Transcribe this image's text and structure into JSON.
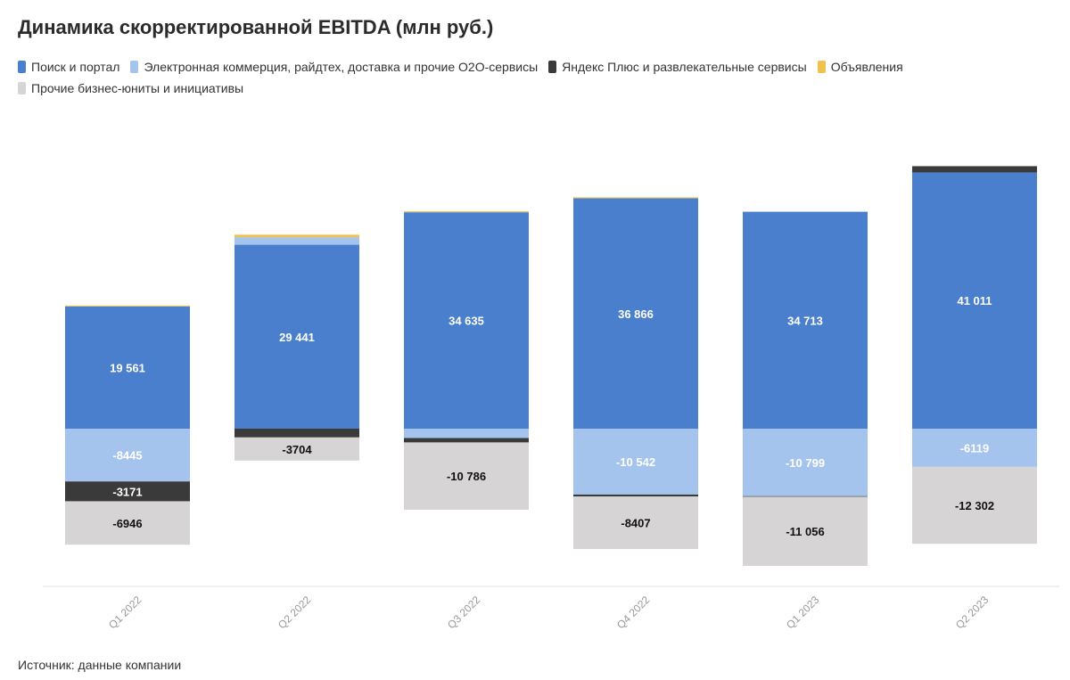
{
  "title": "Динамика скорректированной EBITDA (млн руб.)",
  "source": "Источник: данные компании",
  "colors": {
    "search": "#4a7fcd",
    "ecom": "#a4c4ed",
    "plus": "#3a3a3a",
    "ads": "#f0c24c",
    "other": "#d6d4d4"
  },
  "chart_data": {
    "type": "bar",
    "stacked": true,
    "categories": [
      "Q1 2022",
      "Q2 2022",
      "Q3 2022",
      "Q4 2022",
      "Q1 2023",
      "Q2 2023"
    ],
    "ylim": [
      -20000,
      55000
    ],
    "grid": false,
    "legend_position": "top-left",
    "series": [
      {
        "key": "search",
        "name": "Поиск и портал",
        "values": [
          19561,
          29441,
          34635,
          36866,
          34713,
          41011
        ],
        "labels": [
          "19 561",
          "29 441",
          "34 635",
          "36 866",
          "34 713",
          "41 011"
        ]
      },
      {
        "key": "ecom",
        "name": "Электронная коммерция, райдтех, доставка и прочие O2O-сервисы",
        "values": [
          -8445,
          1200,
          -1500,
          -10542,
          -10799,
          -6119
        ],
        "labels": [
          "-8445",
          "",
          "",
          "-10 542",
          "-10 799",
          "-6119"
        ]
      },
      {
        "key": "plus",
        "name": "Яндекс Плюс и развлекательные сервисы",
        "values": [
          -3171,
          -1400,
          -700,
          -300,
          -100,
          1000
        ],
        "labels": [
          "-3171",
          "",
          "",
          "",
          "",
          ""
        ]
      },
      {
        "key": "ads",
        "name": "Объявления",
        "values": [
          150,
          400,
          150,
          150,
          0,
          0
        ],
        "labels": [
          "",
          "",
          "",
          "",
          "",
          ""
        ]
      },
      {
        "key": "other",
        "name": "Прочие бизнес-юниты и инициативы",
        "values": [
          -6946,
          -3704,
          -10786,
          -8407,
          -11056,
          -12302
        ],
        "labels": [
          "-6946",
          "-3704",
          "-10 786",
          "-8407",
          "-11 056",
          "-12 302"
        ]
      }
    ]
  }
}
